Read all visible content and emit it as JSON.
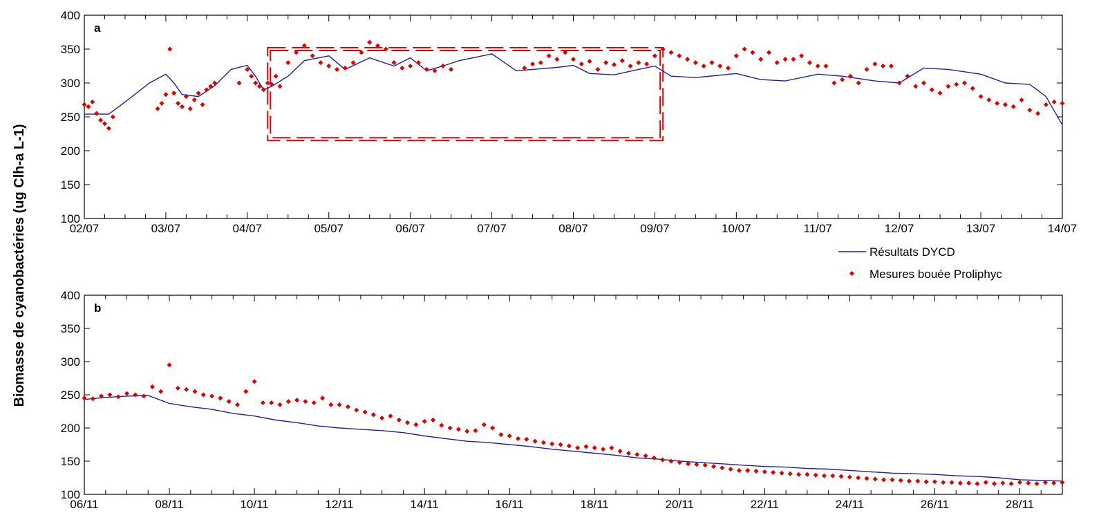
{
  "figure": {
    "ylabel": "Biomasse de cyanobactéries (ug Clh-a L-1)"
  },
  "legend": {
    "model_label": "Résultats DYCD",
    "obs_label": "Mesures bouée Proliphyc",
    "model_color": "#1f1fa0",
    "obs_color": "#e00000"
  },
  "chart_data": [
    {
      "type": "line",
      "panel": "a",
      "xlabel": "",
      "ylabel": "Biomasse de cyanobactéries (ug Clh-a L-1)",
      "x_unit": "days from 02/07 (date axis)",
      "x_ticks": [
        0,
        1,
        2,
        3,
        4,
        5,
        6,
        7,
        8,
        9,
        10,
        11,
        12
      ],
      "x_tick_labels": [
        "02/07",
        "03/07",
        "04/07",
        "05/07",
        "06/07",
        "07/07",
        "08/07",
        "09/07",
        "10/07",
        "11/07",
        "12/07",
        "13/07",
        "14/07"
      ],
      "xlim": [
        0,
        12
      ],
      "ylim": [
        100,
        400
      ],
      "y_ticks": [
        100,
        150,
        200,
        250,
        300,
        350,
        400
      ],
      "highlight_box": {
        "x": [
          2.25,
          7.1
        ],
        "y": [
          215,
          352
        ],
        "color": "#e00000",
        "style": "dashed"
      },
      "series": [
        {
          "name": "Résultats DYCD",
          "kind": "line",
          "x": [
            0,
            0.3,
            0.5,
            0.8,
            1.0,
            1.1,
            1.2,
            1.4,
            1.6,
            1.8,
            2.0,
            2.1,
            2.2,
            2.3,
            2.5,
            2.7,
            3.0,
            3.2,
            3.5,
            3.8,
            4.0,
            4.2,
            4.4,
            4.6,
            4.8,
            5.0,
            5.3,
            5.5,
            5.8,
            6.0,
            6.2,
            6.5,
            6.8,
            7.0,
            7.2,
            7.5,
            8.0,
            8.3,
            8.6,
            9.0,
            9.3,
            9.7,
            10.0,
            10.3,
            10.6,
            11.0,
            11.3,
            11.6,
            11.8,
            12.0
          ],
          "y": [
            254,
            254,
            272,
            300,
            313,
            300,
            283,
            280,
            296,
            320,
            326,
            310,
            290,
            295,
            310,
            333,
            340,
            320,
            337,
            325,
            337,
            318,
            325,
            333,
            338,
            343,
            318,
            320,
            323,
            326,
            314,
            312,
            320,
            325,
            310,
            308,
            314,
            305,
            303,
            313,
            310,
            303,
            300,
            322,
            320,
            313,
            300,
            298,
            280,
            238
          ]
        },
        {
          "name": "Mesures bouée Proliphyc",
          "kind": "scatter",
          "x": [
            0.0,
            0.05,
            0.1,
            0.15,
            0.2,
            0.25,
            0.3,
            0.35,
            0.9,
            0.95,
            1.0,
            1.05,
            1.1,
            1.15,
            1.2,
            1.25,
            1.3,
            1.35,
            1.4,
            1.45,
            1.5,
            1.55,
            1.6,
            1.9,
            2.0,
            2.05,
            2.1,
            2.15,
            2.2,
            2.25,
            2.3,
            2.35,
            2.4,
            2.5,
            2.6,
            2.7,
            2.8,
            2.9,
            3.0,
            3.1,
            3.2,
            3.3,
            3.4,
            3.5,
            3.6,
            3.7,
            3.8,
            3.9,
            4.0,
            4.1,
            4.2,
            4.3,
            4.4,
            4.5,
            5.4,
            5.5,
            5.6,
            5.7,
            5.8,
            5.9,
            6.0,
            6.1,
            6.2,
            6.3,
            6.4,
            6.5,
            6.6,
            6.7,
            6.8,
            6.9,
            7.0,
            7.1,
            7.2,
            7.3,
            7.4,
            7.5,
            7.6,
            7.7,
            7.8,
            7.9,
            8.0,
            8.1,
            8.2,
            8.3,
            8.4,
            8.5,
            8.6,
            8.7,
            8.8,
            8.9,
            9.0,
            9.1,
            9.2,
            9.3,
            9.4,
            9.5,
            9.6,
            9.7,
            9.8,
            9.9,
            10.0,
            10.1,
            10.2,
            10.3,
            10.4,
            10.5,
            10.6,
            10.7,
            10.8,
            10.9,
            11.0,
            11.1,
            11.2,
            11.3,
            11.4,
            11.5,
            11.6,
            11.7,
            11.8,
            11.9,
            12.0
          ],
          "y": [
            268,
            265,
            272,
            255,
            245,
            240,
            233,
            250,
            262,
            270,
            283,
            350,
            285,
            270,
            265,
            280,
            262,
            275,
            285,
            268,
            290,
            295,
            300,
            300,
            320,
            310,
            300,
            295,
            290,
            300,
            298,
            310,
            295,
            330,
            345,
            355,
            340,
            330,
            325,
            320,
            322,
            330,
            345,
            360,
            355,
            350,
            330,
            322,
            325,
            330,
            320,
            318,
            325,
            320,
            322,
            328,
            330,
            340,
            335,
            345,
            335,
            328,
            332,
            320,
            330,
            327,
            333,
            325,
            330,
            328,
            340,
            350,
            345,
            340,
            335,
            330,
            325,
            330,
            325,
            322,
            340,
            350,
            345,
            335,
            345,
            330,
            335,
            335,
            340,
            330,
            325,
            325,
            300,
            305,
            310,
            300,
            320,
            328,
            325,
            325,
            300,
            310,
            295,
            300,
            290,
            285,
            295,
            298,
            300,
            292,
            280,
            275,
            270,
            268,
            265,
            275,
            260,
            255,
            268,
            272,
            270
          ]
        }
      ]
    },
    {
      "type": "line",
      "panel": "b",
      "xlabel": "",
      "ylabel": "Biomasse de cyanobactéries (ug Clh-a L-1)",
      "x_unit": "days from 06/11 (date axis)",
      "x_ticks": [
        0,
        2,
        4,
        6,
        8,
        10,
        12,
        14,
        16,
        18,
        20,
        22
      ],
      "x_tick_labels": [
        "06/11",
        "08/11",
        "10/11",
        "12/11",
        "14/11",
        "16/11",
        "18/11",
        "20/11",
        "22/11",
        "24/11",
        "26/11",
        "28/11"
      ],
      "xlim": [
        0,
        23
      ],
      "ylim": [
        100,
        400
      ],
      "y_ticks": [
        100,
        150,
        200,
        250,
        300,
        350,
        400
      ],
      "series": [
        {
          "name": "Résultats DYCD",
          "kind": "line",
          "x": [
            0,
            0.5,
            1.0,
            1.5,
            2.0,
            2.5,
            3.0,
            3.5,
            4.0,
            4.5,
            5.0,
            5.5,
            6.0,
            6.5,
            7.0,
            7.5,
            8.0,
            8.5,
            9.0,
            9.5,
            10.0,
            10.5,
            11.0,
            11.5,
            12.0,
            12.5,
            13.0,
            13.5,
            14.0,
            14.5,
            15.0,
            15.5,
            16.0,
            16.5,
            17.0,
            17.5,
            18.0,
            18.5,
            19.0,
            19.5,
            20.0,
            20.5,
            21.0,
            21.5,
            22.0,
            22.5,
            23.0
          ],
          "y": [
            243,
            246,
            248,
            249,
            237,
            232,
            228,
            222,
            218,
            212,
            208,
            203,
            200,
            198,
            196,
            193,
            188,
            184,
            180,
            178,
            175,
            172,
            168,
            165,
            162,
            159,
            155,
            153,
            150,
            148,
            146,
            144,
            142,
            141,
            139,
            138,
            136,
            134,
            132,
            131,
            130,
            128,
            127,
            125,
            122,
            121,
            120
          ]
        },
        {
          "name": "Mesures bouée Proliphyc",
          "kind": "scatter",
          "x": [
            0,
            0.2,
            0.4,
            0.6,
            0.8,
            1.0,
            1.2,
            1.4,
            1.6,
            1.8,
            2.0,
            2.2,
            2.4,
            2.6,
            2.8,
            3.0,
            3.2,
            3.4,
            3.6,
            3.8,
            4.0,
            4.2,
            4.4,
            4.6,
            4.8,
            5.0,
            5.2,
            5.4,
            5.6,
            5.8,
            6.0,
            6.2,
            6.4,
            6.6,
            6.8,
            7.0,
            7.2,
            7.4,
            7.6,
            7.8,
            8.0,
            8.2,
            8.4,
            8.6,
            8.8,
            9.0,
            9.2,
            9.4,
            9.6,
            9.8,
            10.0,
            10.2,
            10.4,
            10.6,
            10.8,
            11.0,
            11.2,
            11.4,
            11.6,
            11.8,
            12.0,
            12.2,
            12.4,
            12.6,
            12.8,
            13.0,
            13.2,
            13.4,
            13.6,
            13.8,
            14.0,
            14.2,
            14.4,
            14.6,
            14.8,
            15.0,
            15.2,
            15.4,
            15.6,
            15.8,
            16.0,
            16.2,
            16.4,
            16.6,
            16.8,
            17.0,
            17.2,
            17.4,
            17.6,
            17.8,
            18.0,
            18.2,
            18.4,
            18.6,
            18.8,
            19.0,
            19.2,
            19.4,
            19.6,
            19.8,
            20.0,
            20.2,
            20.4,
            20.6,
            20.8,
            21.0,
            21.2,
            21.4,
            21.6,
            21.8,
            22.0,
            22.2,
            22.4,
            22.6,
            22.8,
            23.0
          ],
          "y": [
            245,
            244,
            248,
            250,
            247,
            252,
            250,
            248,
            262,
            255,
            295,
            260,
            258,
            255,
            250,
            248,
            245,
            240,
            235,
            255,
            270,
            238,
            238,
            235,
            240,
            242,
            240,
            238,
            245,
            235,
            235,
            232,
            227,
            224,
            220,
            215,
            218,
            212,
            208,
            205,
            210,
            212,
            204,
            200,
            198,
            195,
            196,
            205,
            200,
            190,
            188,
            184,
            183,
            180,
            178,
            176,
            175,
            173,
            170,
            172,
            170,
            168,
            170,
            165,
            162,
            160,
            158,
            155,
            152,
            150,
            148,
            146,
            145,
            144,
            142,
            140,
            138,
            136,
            136,
            135,
            134,
            133,
            132,
            131,
            130,
            130,
            129,
            128,
            128,
            127,
            126,
            125,
            124,
            123,
            122,
            122,
            121,
            120,
            120,
            119,
            119,
            118,
            118,
            117,
            117,
            116,
            118,
            116,
            117,
            116,
            118,
            117,
            116,
            118,
            117,
            118
          ]
        }
      ]
    }
  ]
}
